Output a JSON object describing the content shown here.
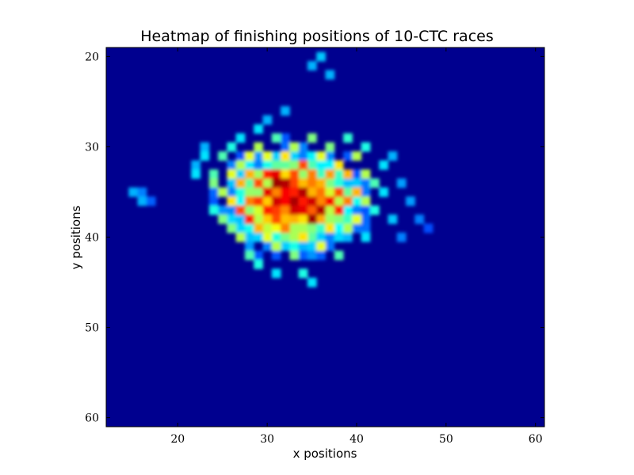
{
  "chart_data": {
    "type": "heatmap",
    "title": "Heatmap of finishing positions of 10-CTC races",
    "xlabel": "x positions",
    "ylabel": "y positions",
    "xlim": [
      12,
      61
    ],
    "ylim": [
      61,
      19
    ],
    "xticks": [
      "20",
      "30",
      "40",
      "50",
      "60"
    ],
    "yticks": [
      "20",
      "30",
      "40",
      "50",
      "60"
    ],
    "colormap": "jet",
    "colors": {
      "background": "#00008f",
      "max": "#800000"
    },
    "peak_center": {
      "x": 33,
      "y": 36
    },
    "cells": [
      {
        "x": 15,
        "y": 35,
        "v": 0.3
      },
      {
        "x": 16,
        "y": 35,
        "v": 0.25
      },
      {
        "x": 16,
        "y": 36,
        "v": 0.3
      },
      {
        "x": 17,
        "y": 36,
        "v": 0.22
      },
      {
        "x": 22,
        "y": 32,
        "v": 0.3
      },
      {
        "x": 22,
        "y": 33,
        "v": 0.35
      },
      {
        "x": 23,
        "y": 30,
        "v": 0.3
      },
      {
        "x": 23,
        "y": 31,
        "v": 0.35
      },
      {
        "x": 24,
        "y": 33,
        "v": 0.45
      },
      {
        "x": 24,
        "y": 34,
        "v": 0.5
      },
      {
        "x": 24,
        "y": 37,
        "v": 0.4
      },
      {
        "x": 25,
        "y": 31,
        "v": 0.45
      },
      {
        "x": 25,
        "y": 35,
        "v": 0.55
      },
      {
        "x": 25,
        "y": 38,
        "v": 0.5
      },
      {
        "x": 26,
        "y": 30,
        "v": 0.4
      },
      {
        "x": 26,
        "y": 33,
        "v": 0.6
      },
      {
        "x": 26,
        "y": 36,
        "v": 0.65
      },
      {
        "x": 26,
        "y": 39,
        "v": 0.5
      },
      {
        "x": 27,
        "y": 29,
        "v": 0.35
      },
      {
        "x": 27,
        "y": 32,
        "v": 0.55
      },
      {
        "x": 27,
        "y": 34,
        "v": 0.7
      },
      {
        "x": 27,
        "y": 37,
        "v": 0.8
      },
      {
        "x": 27,
        "y": 40,
        "v": 0.55
      },
      {
        "x": 28,
        "y": 31,
        "v": 0.6
      },
      {
        "x": 28,
        "y": 33,
        "v": 0.7
      },
      {
        "x": 28,
        "y": 36,
        "v": 0.75
      },
      {
        "x": 28,
        "y": 38,
        "v": 0.85
      },
      {
        "x": 28,
        "y": 42,
        "v": 0.45
      },
      {
        "x": 29,
        "y": 28,
        "v": 0.35
      },
      {
        "x": 29,
        "y": 30,
        "v": 0.55
      },
      {
        "x": 29,
        "y": 34,
        "v": 0.8
      },
      {
        "x": 29,
        "y": 36,
        "v": 0.82
      },
      {
        "x": 29,
        "y": 39,
        "v": 0.7
      },
      {
        "x": 29,
        "y": 43,
        "v": 0.4
      },
      {
        "x": 30,
        "y": 27,
        "v": 0.3
      },
      {
        "x": 30,
        "y": 31,
        "v": 0.6
      },
      {
        "x": 30,
        "y": 33,
        "v": 0.85
      },
      {
        "x": 30,
        "y": 35,
        "v": 0.9
      },
      {
        "x": 30,
        "y": 37,
        "v": 0.85
      },
      {
        "x": 30,
        "y": 40,
        "v": 0.6
      },
      {
        "x": 31,
        "y": 29,
        "v": 0.45
      },
      {
        "x": 31,
        "y": 33,
        "v": 0.9
      },
      {
        "x": 31,
        "y": 34,
        "v": 0.97
      },
      {
        "x": 31,
        "y": 36,
        "v": 0.92
      },
      {
        "x": 31,
        "y": 38,
        "v": 0.8
      },
      {
        "x": 31,
        "y": 41,
        "v": 0.55
      },
      {
        "x": 31,
        "y": 44,
        "v": 0.35
      },
      {
        "x": 32,
        "y": 26,
        "v": 0.3
      },
      {
        "x": 32,
        "y": 31,
        "v": 0.65
      },
      {
        "x": 32,
        "y": 34,
        "v": 0.95
      },
      {
        "x": 32,
        "y": 36,
        "v": 0.88
      },
      {
        "x": 32,
        "y": 39,
        "v": 0.75
      },
      {
        "x": 33,
        "y": 30,
        "v": 0.55
      },
      {
        "x": 33,
        "y": 33,
        "v": 0.8
      },
      {
        "x": 33,
        "y": 35,
        "v": 0.85
      },
      {
        "x": 33,
        "y": 37,
        "v": 0.92
      },
      {
        "x": 33,
        "y": 42,
        "v": 0.5
      },
      {
        "x": 34,
        "y": 32,
        "v": 0.8
      },
      {
        "x": 34,
        "y": 35,
        "v": 0.95
      },
      {
        "x": 34,
        "y": 37,
        "v": 0.9
      },
      {
        "x": 34,
        "y": 40,
        "v": 0.65
      },
      {
        "x": 34,
        "y": 44,
        "v": 0.4
      },
      {
        "x": 35,
        "y": 21,
        "v": 0.3
      },
      {
        "x": 35,
        "y": 29,
        "v": 0.5
      },
      {
        "x": 35,
        "y": 33,
        "v": 0.75
      },
      {
        "x": 35,
        "y": 36,
        "v": 0.92
      },
      {
        "x": 35,
        "y": 38,
        "v": 0.97
      },
      {
        "x": 35,
        "y": 45,
        "v": 0.35
      },
      {
        "x": 36,
        "y": 20,
        "v": 0.32
      },
      {
        "x": 36,
        "y": 31,
        "v": 0.6
      },
      {
        "x": 36,
        "y": 34,
        "v": 0.7
      },
      {
        "x": 36,
        "y": 37,
        "v": 0.95
      },
      {
        "x": 36,
        "y": 41,
        "v": 0.6
      },
      {
        "x": 37,
        "y": 22,
        "v": 0.3
      },
      {
        "x": 37,
        "y": 30,
        "v": 0.5
      },
      {
        "x": 37,
        "y": 33,
        "v": 0.72
      },
      {
        "x": 37,
        "y": 36,
        "v": 0.88
      },
      {
        "x": 37,
        "y": 39,
        "v": 0.65
      },
      {
        "x": 38,
        "y": 32,
        "v": 0.65
      },
      {
        "x": 38,
        "y": 35,
        "v": 0.8
      },
      {
        "x": 38,
        "y": 37,
        "v": 0.85
      },
      {
        "x": 38,
        "y": 42,
        "v": 0.45
      },
      {
        "x": 39,
        "y": 29,
        "v": 0.42
      },
      {
        "x": 39,
        "y": 33,
        "v": 0.7
      },
      {
        "x": 39,
        "y": 36,
        "v": 0.75
      },
      {
        "x": 39,
        "y": 39,
        "v": 0.55
      },
      {
        "x": 40,
        "y": 31,
        "v": 0.55
      },
      {
        "x": 40,
        "y": 35,
        "v": 0.7
      },
      {
        "x": 40,
        "y": 38,
        "v": 0.6
      },
      {
        "x": 41,
        "y": 30,
        "v": 0.4
      },
      {
        "x": 41,
        "y": 33,
        "v": 0.55
      },
      {
        "x": 41,
        "y": 36,
        "v": 0.55
      },
      {
        "x": 41,
        "y": 40,
        "v": 0.35
      },
      {
        "x": 42,
        "y": 34,
        "v": 0.45
      },
      {
        "x": 42,
        "y": 37,
        "v": 0.4
      },
      {
        "x": 43,
        "y": 32,
        "v": 0.35
      },
      {
        "x": 43,
        "y": 35,
        "v": 0.35
      },
      {
        "x": 44,
        "y": 31,
        "v": 0.3
      },
      {
        "x": 44,
        "y": 38,
        "v": 0.32
      },
      {
        "x": 45,
        "y": 34,
        "v": 0.28
      },
      {
        "x": 45,
        "y": 40,
        "v": 0.25
      },
      {
        "x": 46,
        "y": 36,
        "v": 0.28
      },
      {
        "x": 47,
        "y": 38,
        "v": 0.25
      },
      {
        "x": 48,
        "y": 39,
        "v": 0.2
      }
    ]
  }
}
